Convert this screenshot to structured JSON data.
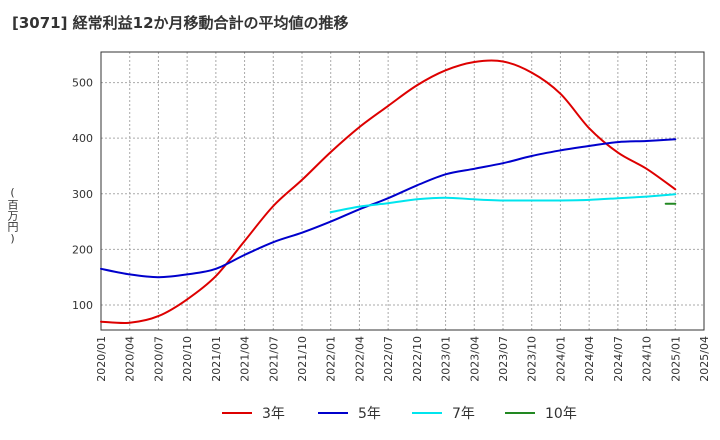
{
  "title": "[3071]  経常利益12か月移動合計の平均値の推移",
  "y_unit_label": "(百万円)",
  "chart_data": {
    "type": "line",
    "xlabel": "",
    "ylabel": "(百万円)",
    "ylim": [
      55,
      555
    ],
    "yticks": [
      100,
      200,
      300,
      400,
      500
    ],
    "grid": true,
    "legend_position": "bottom",
    "x_ticks": [
      "2020/01",
      "2020/04",
      "2020/07",
      "2020/10",
      "2021/01",
      "2021/04",
      "2021/07",
      "2021/10",
      "2022/01",
      "2022/04",
      "2022/07",
      "2022/10",
      "2023/01",
      "2023/04",
      "2023/07",
      "2023/10",
      "2024/01",
      "2024/04",
      "2024/07",
      "2024/10",
      "2025/01",
      "2025/04"
    ],
    "series": [
      {
        "name": "3年",
        "color": "#dd0000",
        "points": [
          [
            "2020/01",
            70
          ],
          [
            "2020/04",
            68
          ],
          [
            "2020/07",
            80
          ],
          [
            "2020/10",
            110
          ],
          [
            "2021/01",
            152
          ],
          [
            "2021/04",
            215
          ],
          [
            "2021/07",
            278
          ],
          [
            "2021/10",
            325
          ],
          [
            "2022/01",
            375
          ],
          [
            "2022/04",
            420
          ],
          [
            "2022/07",
            458
          ],
          [
            "2022/10",
            495
          ],
          [
            "2023/01",
            522
          ],
          [
            "2023/04",
            537
          ],
          [
            "2023/07",
            538
          ],
          [
            "2023/10",
            518
          ],
          [
            "2024/01",
            480
          ],
          [
            "2024/04",
            418
          ],
          [
            "2024/07",
            374
          ],
          [
            "2024/10",
            345
          ],
          [
            "2025/01",
            308
          ]
        ]
      },
      {
        "name": "5年",
        "color": "#0000cc",
        "points": [
          [
            "2020/01",
            165
          ],
          [
            "2020/04",
            155
          ],
          [
            "2020/07",
            150
          ],
          [
            "2020/10",
            155
          ],
          [
            "2021/01",
            165
          ],
          [
            "2021/04",
            190
          ],
          [
            "2021/07",
            213
          ],
          [
            "2021/10",
            230
          ],
          [
            "2022/01",
            250
          ],
          [
            "2022/04",
            272
          ],
          [
            "2022/07",
            292
          ],
          [
            "2022/10",
            315
          ],
          [
            "2023/01",
            335
          ],
          [
            "2023/04",
            345
          ],
          [
            "2023/07",
            355
          ],
          [
            "2023/10",
            368
          ],
          [
            "2024/01",
            378
          ],
          [
            "2024/04",
            386
          ],
          [
            "2024/07",
            393
          ],
          [
            "2024/10",
            395
          ],
          [
            "2025/01",
            398
          ]
        ]
      },
      {
        "name": "7年",
        "color": "#00e5ee",
        "points": [
          [
            "2022/01",
            267
          ],
          [
            "2022/04",
            277
          ],
          [
            "2022/07",
            283
          ],
          [
            "2022/10",
            290
          ],
          [
            "2023/01",
            293
          ],
          [
            "2023/04",
            290
          ],
          [
            "2023/07",
            288
          ],
          [
            "2023/10",
            288
          ],
          [
            "2024/01",
            288
          ],
          [
            "2024/04",
            289
          ],
          [
            "2024/07",
            292
          ],
          [
            "2024/10",
            295
          ],
          [
            "2025/01",
            299
          ]
        ]
      },
      {
        "name": "10年",
        "color": "#228822",
        "points": [
          [
            "2024/12",
            282
          ],
          [
            "2025/01",
            282
          ]
        ]
      }
    ]
  }
}
